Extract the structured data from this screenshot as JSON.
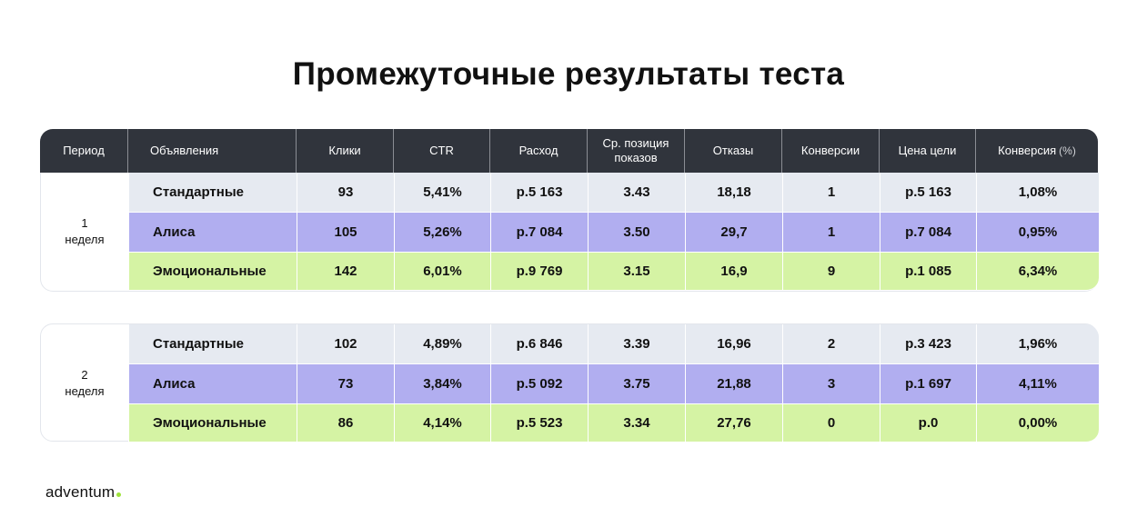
{
  "title": "Промежуточные результаты теста",
  "headers": [
    "Период",
    "Объявления",
    "Клики",
    "CTR",
    "Расход",
    "Ср. позиция показов",
    "Отказы",
    "Конверсии",
    "Цена цели",
    "Конверсия"
  ],
  "header_suffix": "(%)",
  "periods": [
    {
      "num": "1",
      "label": "неделя",
      "rows": [
        [
          "Стандартные",
          "93",
          "5,41%",
          "р.5 163",
          "3.43",
          "18,18",
          "1",
          "р.5 163",
          "1,08%"
        ],
        [
          "Алиса",
          "105",
          "5,26%",
          "р.7 084",
          "3.50",
          "29,7",
          "1",
          "р.7 084",
          "0,95%"
        ],
        [
          "Эмоциональные",
          "142",
          "6,01%",
          "р.9 769",
          "3.15",
          "16,9",
          "9",
          "р.1 085",
          "6,34%"
        ]
      ]
    },
    {
      "num": "2",
      "label": "неделя",
      "rows": [
        [
          "Стандартные",
          "102",
          "4,89%",
          "р.6 846",
          "3.39",
          "16,96",
          "2",
          "р.3 423",
          "1,96%"
        ],
        [
          "Алиса",
          "73",
          "3,84%",
          "р.5 092",
          "3.75",
          "21,88",
          "3",
          "р.1 697",
          "4,11%"
        ],
        [
          "Эмоциональные",
          "86",
          "4,14%",
          "р.5 523",
          "3.34",
          "27,76",
          "0",
          "р.0",
          "0,00%"
        ]
      ]
    }
  ],
  "row_colors": {
    "Стандартные": "#e6eaf1",
    "Алиса": "#b1aef0",
    "Эмоциональные": "#d5f3a4"
  },
  "header_color": "#30343c",
  "logo": "adventum",
  "logo_dot_color": "#9ee33a"
}
